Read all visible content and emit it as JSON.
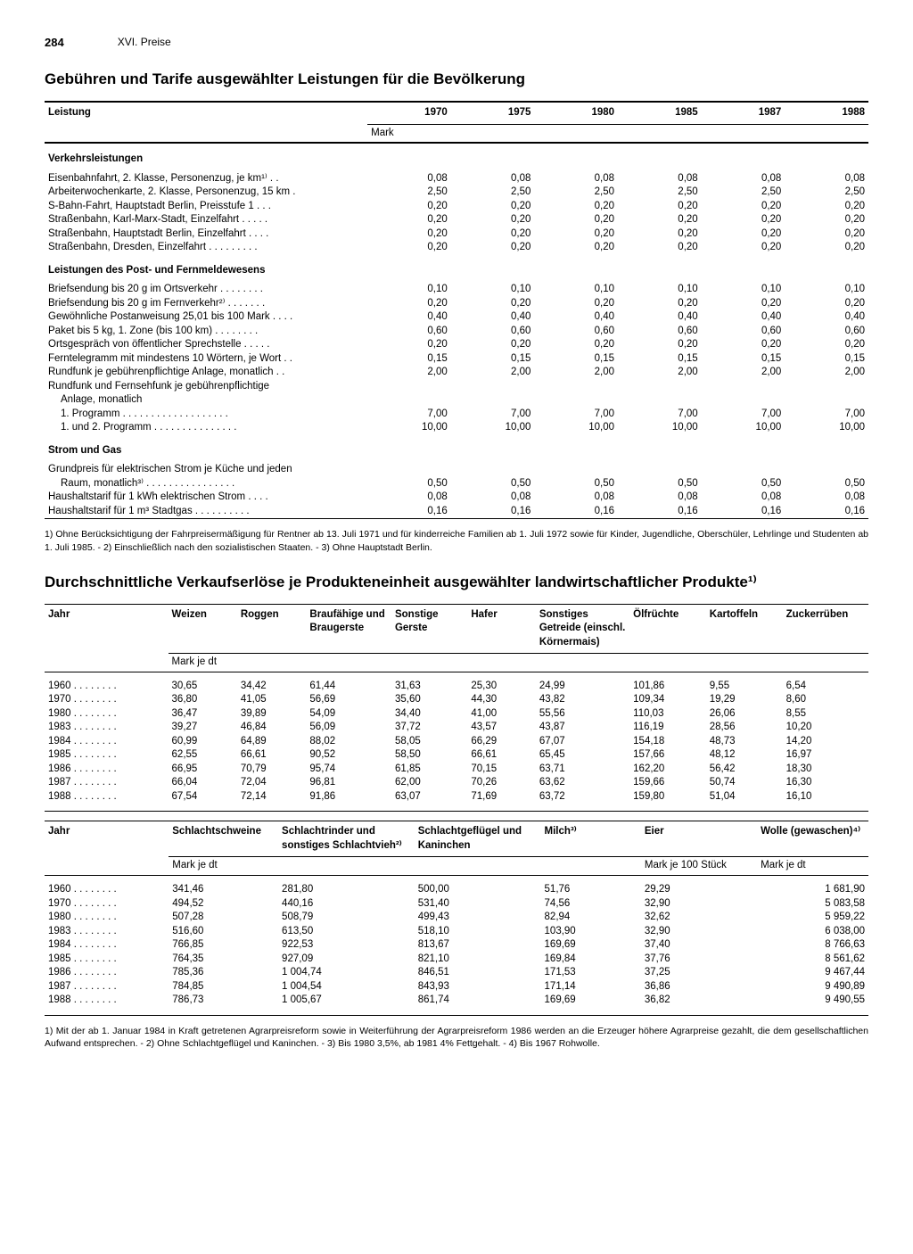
{
  "page_number": "284",
  "chapter": "XVI. Preise",
  "table1": {
    "title": "Gebühren und Tarife ausgewählter Leistungen für die Bevölkerung",
    "col_label": "Leistung",
    "unit": "Mark",
    "years": [
      "1970",
      "1975",
      "1980",
      "1985",
      "1987",
      "1988"
    ],
    "sections": [
      {
        "heading": "Verkehrsleistungen",
        "rows": [
          {
            "label": "Eisenbahnfahrt, 2. Klasse, Personenzug, je km¹⁾",
            "vals": [
              "0,08",
              "0,08",
              "0,08",
              "0,08",
              "0,08",
              "0,08"
            ]
          },
          {
            "label": "Arbeiterwochenkarte, 2. Klasse, Personenzug, 15 km",
            "vals": [
              "2,50",
              "2,50",
              "2,50",
              "2,50",
              "2,50",
              "2,50"
            ]
          },
          {
            "label": "S-Bahn-Fahrt, Hauptstadt Berlin, Preisstufe 1",
            "vals": [
              "0,20",
              "0,20",
              "0,20",
              "0,20",
              "0,20",
              "0,20"
            ]
          },
          {
            "label": "Straßenbahn, Karl-Marx-Stadt, Einzelfahrt",
            "vals": [
              "0,20",
              "0,20",
              "0,20",
              "0,20",
              "0,20",
              "0,20"
            ]
          },
          {
            "label": "Straßenbahn, Hauptstadt Berlin, Einzelfahrt",
            "vals": [
              "0,20",
              "0,20",
              "0,20",
              "0,20",
              "0,20",
              "0,20"
            ]
          },
          {
            "label": "Straßenbahn, Dresden, Einzelfahrt",
            "vals": [
              "0,20",
              "0,20",
              "0,20",
              "0,20",
              "0,20",
              "0,20"
            ]
          }
        ]
      },
      {
        "heading": "Leistungen des Post- und Fernmeldewesens",
        "rows": [
          {
            "label": "Briefsendung bis 20 g im Ortsverkehr",
            "vals": [
              "0,10",
              "0,10",
              "0,10",
              "0,10",
              "0,10",
              "0,10"
            ]
          },
          {
            "label": "Briefsendung bis 20 g im Fernverkehr²⁾",
            "vals": [
              "0,20",
              "0,20",
              "0,20",
              "0,20",
              "0,20",
              "0,20"
            ]
          },
          {
            "label": "Gewöhnliche Postanweisung 25,01 bis 100 Mark",
            "vals": [
              "0,40",
              "0,40",
              "0,40",
              "0,40",
              "0,40",
              "0,40"
            ]
          },
          {
            "label": "Paket bis 5 kg, 1. Zone (bis 100 km)",
            "vals": [
              "0,60",
              "0,60",
              "0,60",
              "0,60",
              "0,60",
              "0,60"
            ]
          },
          {
            "label": "Ortsgespräch von öffentlicher Sprechstelle",
            "vals": [
              "0,20",
              "0,20",
              "0,20",
              "0,20",
              "0,20",
              "0,20"
            ]
          },
          {
            "label": "Ferntelegramm mit mindestens 10 Wörtern, je Wort",
            "vals": [
              "0,15",
              "0,15",
              "0,15",
              "0,15",
              "0,15",
              "0,15"
            ]
          },
          {
            "label": "Rundfunk je gebührenpflichtige Anlage, monatlich",
            "vals": [
              "2,00",
              "2,00",
              "2,00",
              "2,00",
              "2,00",
              "2,00"
            ]
          },
          {
            "label": "Rundfunk und Fernsehfunk je gebührenpflichtige",
            "vals": [
              "",
              "",
              "",
              "",
              "",
              ""
            ]
          },
          {
            "label": "Anlage, monatlich",
            "indent": true,
            "vals": [
              "",
              "",
              "",
              "",
              "",
              ""
            ]
          },
          {
            "label": "1. Programm",
            "indent": true,
            "vals": [
              "7,00",
              "7,00",
              "7,00",
              "7,00",
              "7,00",
              "7,00"
            ]
          },
          {
            "label": "1. und 2. Programm",
            "indent": true,
            "vals": [
              "10,00",
              "10,00",
              "10,00",
              "10,00",
              "10,00",
              "10,00"
            ]
          }
        ]
      },
      {
        "heading": "Strom und Gas",
        "rows": [
          {
            "label": "Grundpreis für elektrischen Strom je Küche und jeden",
            "vals": [
              "",
              "",
              "",
              "",
              "",
              ""
            ]
          },
          {
            "label": "Raum, monatlich³⁾",
            "indent": true,
            "vals": [
              "0,50",
              "0,50",
              "0,50",
              "0,50",
              "0,50",
              "0,50"
            ]
          },
          {
            "label": "Haushaltstarif für 1 kWh elektrischen Strom",
            "vals": [
              "0,08",
              "0,08",
              "0,08",
              "0,08",
              "0,08",
              "0,08"
            ]
          },
          {
            "label": "Haushaltstarif für 1 m³ Stadtgas",
            "vals": [
              "0,16",
              "0,16",
              "0,16",
              "0,16",
              "0,16",
              "0,16"
            ]
          }
        ]
      }
    ],
    "footnote": "1) Ohne Berücksichtigung der Fahrpreisermäßigung für Rentner ab 13. Juli 1971 und für kinderreiche Familien ab 1. Juli 1972 sowie für Kinder, Jugendliche, Oberschüler, Lehrlinge und Studenten ab 1. Juli 1985. - 2) Einschließlich nach den sozialistischen Staaten. - 3) Ohne Hauptstadt Berlin."
  },
  "table2": {
    "title": "Durchschnittliche Verkaufserlöse je Produkteneinheit ausgewählter landwirtschaftlicher Produkte¹⁾",
    "part_a": {
      "col_label": "Jahr",
      "unit": "Mark je dt",
      "headers": [
        "Weizen",
        "Roggen",
        "Braufähige und Braugerste",
        "Sonstige Gerste",
        "Hafer",
        "Sonstiges Getreide (einschl. Körnermais)",
        "Ölfrüchte",
        "Kartoffeln",
        "Zuckerrüben"
      ],
      "rows": [
        {
          "year": "1960",
          "vals": [
            "30,65",
            "34,42",
            "61,44",
            "31,63",
            "25,30",
            "24,99",
            "101,86",
            "9,55",
            "6,54"
          ]
        },
        {
          "year": "1970",
          "vals": [
            "36,80",
            "41,05",
            "56,69",
            "35,60",
            "44,30",
            "43,82",
            "109,34",
            "19,29",
            "8,60"
          ]
        },
        {
          "year": "1980",
          "vals": [
            "36,47",
            "39,89",
            "54,09",
            "34,40",
            "41,00",
            "55,56",
            "110,03",
            "26,06",
            "8,55"
          ]
        },
        {
          "year": "1983",
          "vals": [
            "39,27",
            "46,84",
            "56,09",
            "37,72",
            "43,57",
            "43,87",
            "116,19",
            "28,56",
            "10,20"
          ]
        },
        {
          "year": "1984",
          "vals": [
            "60,99",
            "64,89",
            "88,02",
            "58,05",
            "66,29",
            "67,07",
            "154,18",
            "48,73",
            "14,20"
          ]
        },
        {
          "year": "1985",
          "vals": [
            "62,55",
            "66,61",
            "90,52",
            "58,50",
            "66,61",
            "65,45",
            "157,66",
            "48,12",
            "16,97"
          ]
        },
        {
          "year": "1986",
          "vals": [
            "66,95",
            "70,79",
            "95,74",
            "61,85",
            "70,15",
            "63,71",
            "162,20",
            "56,42",
            "18,30"
          ]
        },
        {
          "year": "1987",
          "vals": [
            "66,04",
            "72,04",
            "96,81",
            "62,00",
            "70,26",
            "63,62",
            "159,66",
            "50,74",
            "16,30"
          ]
        },
        {
          "year": "1988",
          "vals": [
            "67,54",
            "72,14",
            "91,86",
            "63,07",
            "71,69",
            "63,72",
            "159,80",
            "51,04",
            "16,10"
          ]
        }
      ]
    },
    "part_b": {
      "col_label": "Jahr",
      "unit_a": "Mark je dt",
      "unit_b": "Mark je 100 Stück",
      "unit_c": "Mark je dt",
      "headers": [
        "Schlacht­schweine",
        "Schlachtrinder und sonstiges Schlachtvieh²⁾",
        "Schlacht­geflügel und Kaninchen",
        "Milch³⁾",
        "Eier",
        "Wolle (gewaschen)⁴⁾"
      ],
      "rows": [
        {
          "year": "1960",
          "vals": [
            "341,46",
            "281,80",
            "500,00",
            "51,76",
            "29,29",
            "1 681,90"
          ]
        },
        {
          "year": "1970",
          "vals": [
            "494,52",
            "440,16",
            "531,40",
            "74,56",
            "32,90",
            "5 083,58"
          ]
        },
        {
          "year": "1980",
          "vals": [
            "507,28",
            "508,79",
            "499,43",
            "82,94",
            "32,62",
            "5 959,22"
          ]
        },
        {
          "year": "1983",
          "vals": [
            "516,60",
            "613,50",
            "518,10",
            "103,90",
            "32,90",
            "6 038,00"
          ]
        },
        {
          "year": "1984",
          "vals": [
            "766,85",
            "922,53",
            "813,67",
            "169,69",
            "37,40",
            "8 766,63"
          ]
        },
        {
          "year": "1985",
          "vals": [
            "764,35",
            "927,09",
            "821,10",
            "169,84",
            "37,76",
            "8 561,62"
          ]
        },
        {
          "year": "1986",
          "vals": [
            "785,36",
            "1 004,74",
            "846,51",
            "171,53",
            "37,25",
            "9 467,44"
          ]
        },
        {
          "year": "1987",
          "vals": [
            "784,85",
            "1 004,54",
            "843,93",
            "171,14",
            "36,86",
            "9 490,89"
          ]
        },
        {
          "year": "1988",
          "vals": [
            "786,73",
            "1 005,67",
            "861,74",
            "169,69",
            "36,82",
            "9 490,55"
          ]
        }
      ]
    },
    "footnote": "1) Mit der ab 1. Januar 1984 in Kraft getretenen Agrarpreisreform sowie in Weiterführung der Agrarpreisreform 1986 werden an die Erzeuger höhere Agrarpreise gezahlt, die dem gesellschaftlichen Aufwand entsprechen. - 2) Ohne Schlachtgeflügel und Kaninchen. - 3) Bis 1980 3,5%, ab 1981 4% Fettgehalt. - 4) Bis 1967 Rohwolle."
  }
}
